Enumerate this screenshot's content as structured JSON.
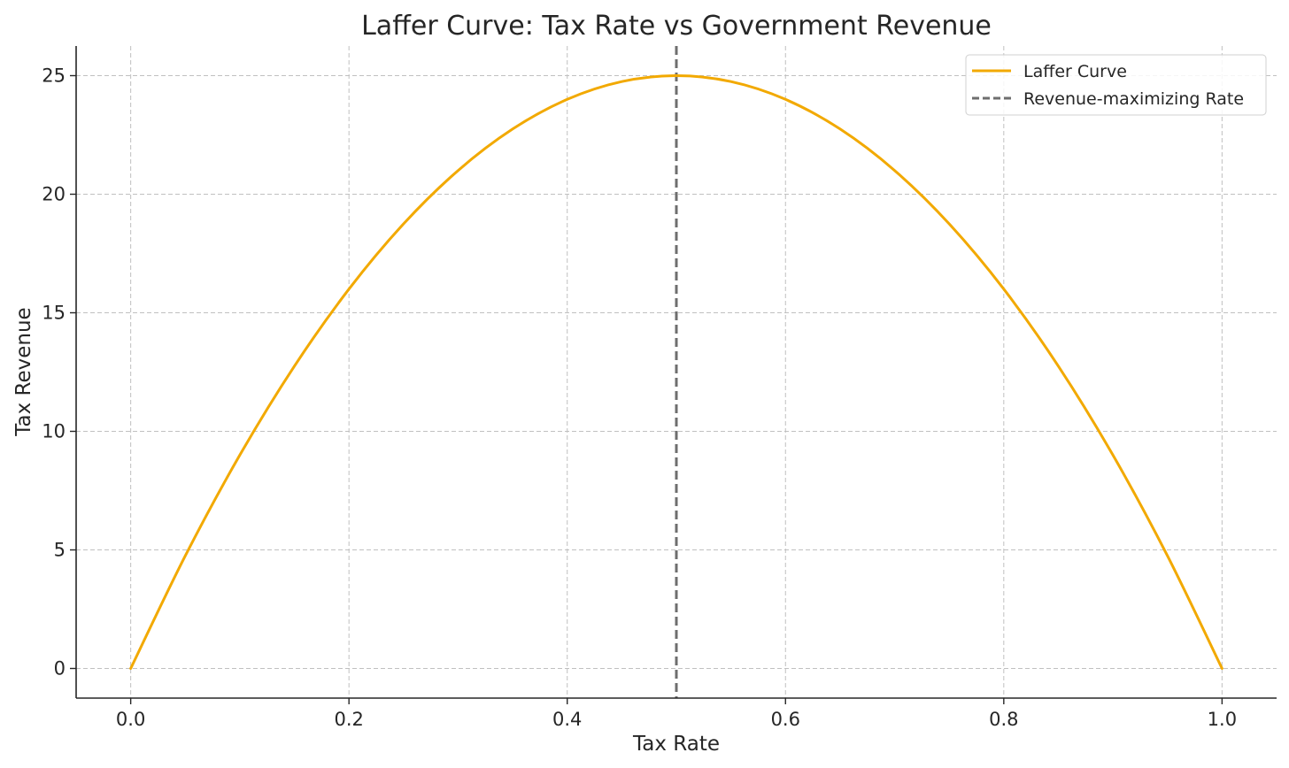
{
  "chart_data": {
    "type": "line",
    "title": "Laffer Curve: Tax Rate vs Government Revenue",
    "xlabel": "Tax Rate",
    "ylabel": "Tax Revenue",
    "xlim": [
      -0.05,
      1.05
    ],
    "ylim": [
      -1.25,
      26.25
    ],
    "x_ticks": [
      0.0,
      0.2,
      0.4,
      0.6,
      0.8,
      1.0
    ],
    "x_tick_labels": [
      "0.0",
      "0.2",
      "0.4",
      "0.6",
      "0.8",
      "1.0"
    ],
    "y_ticks": [
      0,
      5,
      10,
      15,
      20,
      25
    ],
    "y_tick_labels": [
      "0",
      "5",
      "10",
      "15",
      "20",
      "25"
    ],
    "grid": true,
    "legend_position": "top-right",
    "series": [
      {
        "name": "Laffer Curve",
        "color": "#f2a900",
        "style": "solid",
        "x": [
          0.0,
          0.05,
          0.1,
          0.15,
          0.2,
          0.25,
          0.3,
          0.35,
          0.4,
          0.45,
          0.5,
          0.55,
          0.6,
          0.65,
          0.7,
          0.75,
          0.8,
          0.85,
          0.9,
          0.95,
          1.0
        ],
        "y": [
          0.0,
          4.75,
          9.0,
          12.75,
          16.0,
          18.75,
          21.0,
          22.75,
          24.0,
          24.75,
          25.0,
          24.75,
          24.0,
          22.75,
          21.0,
          18.75,
          16.0,
          12.75,
          9.0,
          4.75,
          0.0
        ]
      }
    ],
    "reference_lines": [
      {
        "name": "Revenue-maximizing Rate",
        "orientation": "vertical",
        "x": 0.5,
        "color": "#6e6e6e",
        "style": "dashed"
      }
    ]
  }
}
